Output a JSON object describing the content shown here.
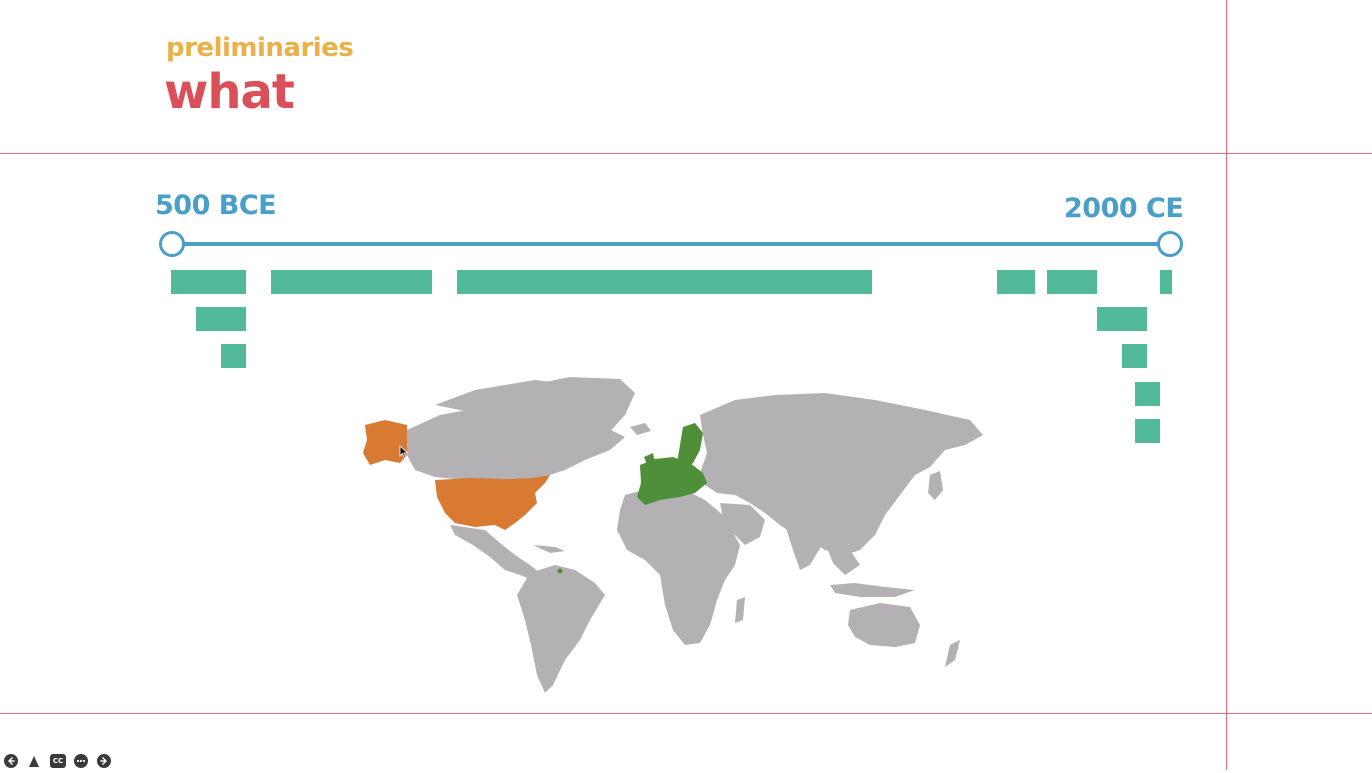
{
  "slide": {
    "subtitle": "preliminaries",
    "title": "what"
  },
  "timeline": {
    "start_label": "500 BCE",
    "end_label": "2000 CE"
  },
  "toolbar": {
    "prev_icon": "arrow-left-icon",
    "pointer_icon": "pointer-icon",
    "captions_label": "CC",
    "more_icon": "ellipsis-icon",
    "next_icon": "arrow-right-icon"
  },
  "colors": {
    "subtitle": "#eab04a",
    "title": "#d9505a",
    "timeline": "#4a9fc8",
    "bars": "#52b99a",
    "usa": "#d97a33",
    "europe": "#4f8f3a",
    "land": "#b3b1b4",
    "guides": "#e0707a"
  }
}
